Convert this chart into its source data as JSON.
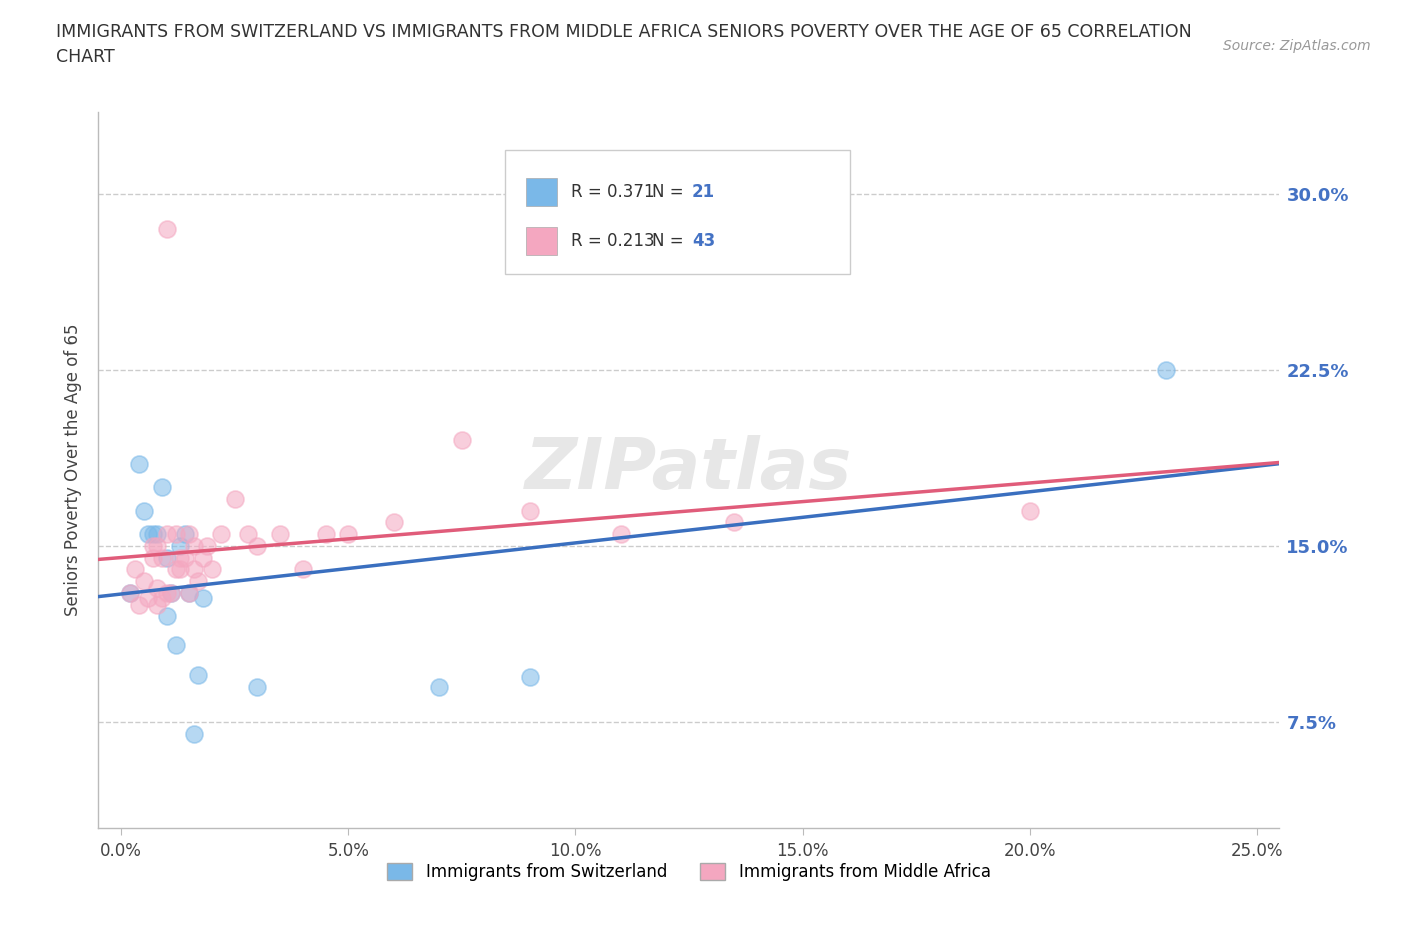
{
  "title": "IMMIGRANTS FROM SWITZERLAND VS IMMIGRANTS FROM MIDDLE AFRICA SENIORS POVERTY OVER THE AGE OF 65 CORRELATION\nCHART",
  "source": "Source: ZipAtlas.com",
  "ylabel": "Seniors Poverty Over the Age of 65",
  "ytick_labels": [
    "7.5%",
    "15.0%",
    "22.5%",
    "30.0%"
  ],
  "ytick_vals": [
    0.075,
    0.15,
    0.225,
    0.3
  ],
  "xtick_labels": [
    "0.0%",
    "5.0%",
    "10.0%",
    "15.0%",
    "20.0%",
    "25.0%"
  ],
  "xtick_vals": [
    0.0,
    0.05,
    0.1,
    0.15,
    0.2,
    0.25
  ],
  "xlim": [
    -0.005,
    0.255
  ],
  "ylim": [
    0.03,
    0.335
  ],
  "legend1_label": "Immigrants from Switzerland",
  "legend2_label": "Immigrants from Middle Africa",
  "R1": 0.371,
  "N1": 21,
  "R2": 0.213,
  "N2": 43,
  "color1": "#7ab8e8",
  "color2": "#f4a7c0",
  "trendline1_color": "#3a6fbf",
  "trendline2_color": "#e05c7a",
  "watermark": "ZIPatlas",
  "swiss_x": [
    0.002,
    0.004,
    0.005,
    0.006,
    0.007,
    0.008,
    0.009,
    0.01,
    0.01,
    0.011,
    0.012,
    0.013,
    0.014,
    0.015,
    0.016,
    0.017,
    0.018,
    0.03,
    0.07,
    0.09,
    0.23
  ],
  "swiss_y": [
    0.13,
    0.185,
    0.165,
    0.155,
    0.155,
    0.155,
    0.175,
    0.145,
    0.12,
    0.13,
    0.108,
    0.15,
    0.155,
    0.13,
    0.07,
    0.095,
    0.128,
    0.09,
    0.09,
    0.094,
    0.225
  ],
  "midafrica_x": [
    0.002,
    0.003,
    0.004,
    0.005,
    0.006,
    0.007,
    0.007,
    0.008,
    0.008,
    0.008,
    0.009,
    0.009,
    0.01,
    0.01,
    0.011,
    0.012,
    0.012,
    0.013,
    0.013,
    0.014,
    0.015,
    0.015,
    0.016,
    0.016,
    0.017,
    0.018,
    0.019,
    0.02,
    0.022,
    0.025,
    0.028,
    0.03,
    0.035,
    0.04,
    0.045,
    0.05,
    0.06,
    0.075,
    0.09,
    0.11,
    0.135,
    0.2,
    0.01
  ],
  "midafrica_y": [
    0.13,
    0.14,
    0.125,
    0.135,
    0.128,
    0.145,
    0.15,
    0.125,
    0.132,
    0.15,
    0.128,
    0.145,
    0.13,
    0.155,
    0.13,
    0.14,
    0.155,
    0.14,
    0.145,
    0.145,
    0.13,
    0.155,
    0.14,
    0.15,
    0.135,
    0.145,
    0.15,
    0.14,
    0.155,
    0.17,
    0.155,
    0.15,
    0.155,
    0.14,
    0.155,
    0.155,
    0.16,
    0.195,
    0.165,
    0.155,
    0.16,
    0.165,
    0.285
  ],
  "grid_color": "#cccccc",
  "bg_color": "#ffffff"
}
